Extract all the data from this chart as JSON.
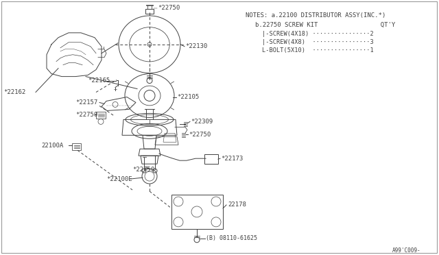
{
  "bg_color": "#ffffff",
  "line_color": "#404040",
  "notes_line1": "NOTES: a.22100 DISTRIBUTOR ASSY(INC.*)",
  "notes_line2": "b.22750 SCREW KIT                 QT'Y",
  "notes_line3": "  |-SCREW(4X18) ................2",
  "notes_line4": "  |-SCREW(4X8)  ................3",
  "notes_line5": "  L-BOLT(5X10)  ................1",
  "ref_code": "A99'C009-",
  "labels": {
    "22750_top": "*22750",
    "22130": "*22130",
    "22162": "*22162",
    "22165": "*22165",
    "22157": "*22157",
    "22750_left": "*22750",
    "22105": "*22105",
    "22309": "*22309",
    "22750_mid": "*22750",
    "22173": "*22173",
    "22100A": "22100A",
    "22750_bot": "*22750",
    "22100E": "*22100E",
    "22178": "22178",
    "08110": "(B) 08110-61625"
  }
}
